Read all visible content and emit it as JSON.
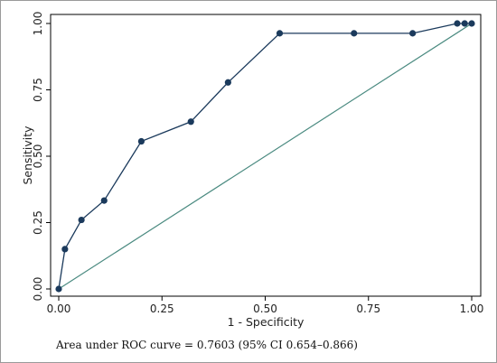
{
  "chart_data": {
    "type": "line",
    "title": "",
    "xlabel": "1 - Specificity",
    "ylabel": "Sensitivity",
    "xlim": [
      0,
      1
    ],
    "ylim": [
      0,
      1
    ],
    "xticks": [
      "0.00",
      "0.25",
      "0.50",
      "0.75",
      "1.00"
    ],
    "yticks": [
      "0.00",
      "0.25",
      "0.50",
      "0.75",
      "1.00"
    ],
    "grid": false,
    "legend": "none",
    "series": [
      {
        "kind": "roc-curve",
        "color": "#1b3a5c",
        "x": [
          0.0,
          0.015,
          0.055,
          0.11,
          0.2,
          0.32,
          0.41,
          0.535,
          0.715,
          0.857,
          0.965,
          0.983,
          1.0
        ],
        "y": [
          0.0,
          0.15,
          0.26,
          0.333,
          0.556,
          0.63,
          0.778,
          0.963,
          0.963,
          0.963,
          1.0,
          1.0,
          1.0
        ]
      },
      {
        "kind": "reference-line",
        "color": "#4a8a80",
        "x": [
          0,
          1
        ],
        "y": [
          0,
          1
        ]
      }
    ],
    "annotation": "Area under ROC curve = 0.7603 (95% CI 0.654–0.866)"
  }
}
